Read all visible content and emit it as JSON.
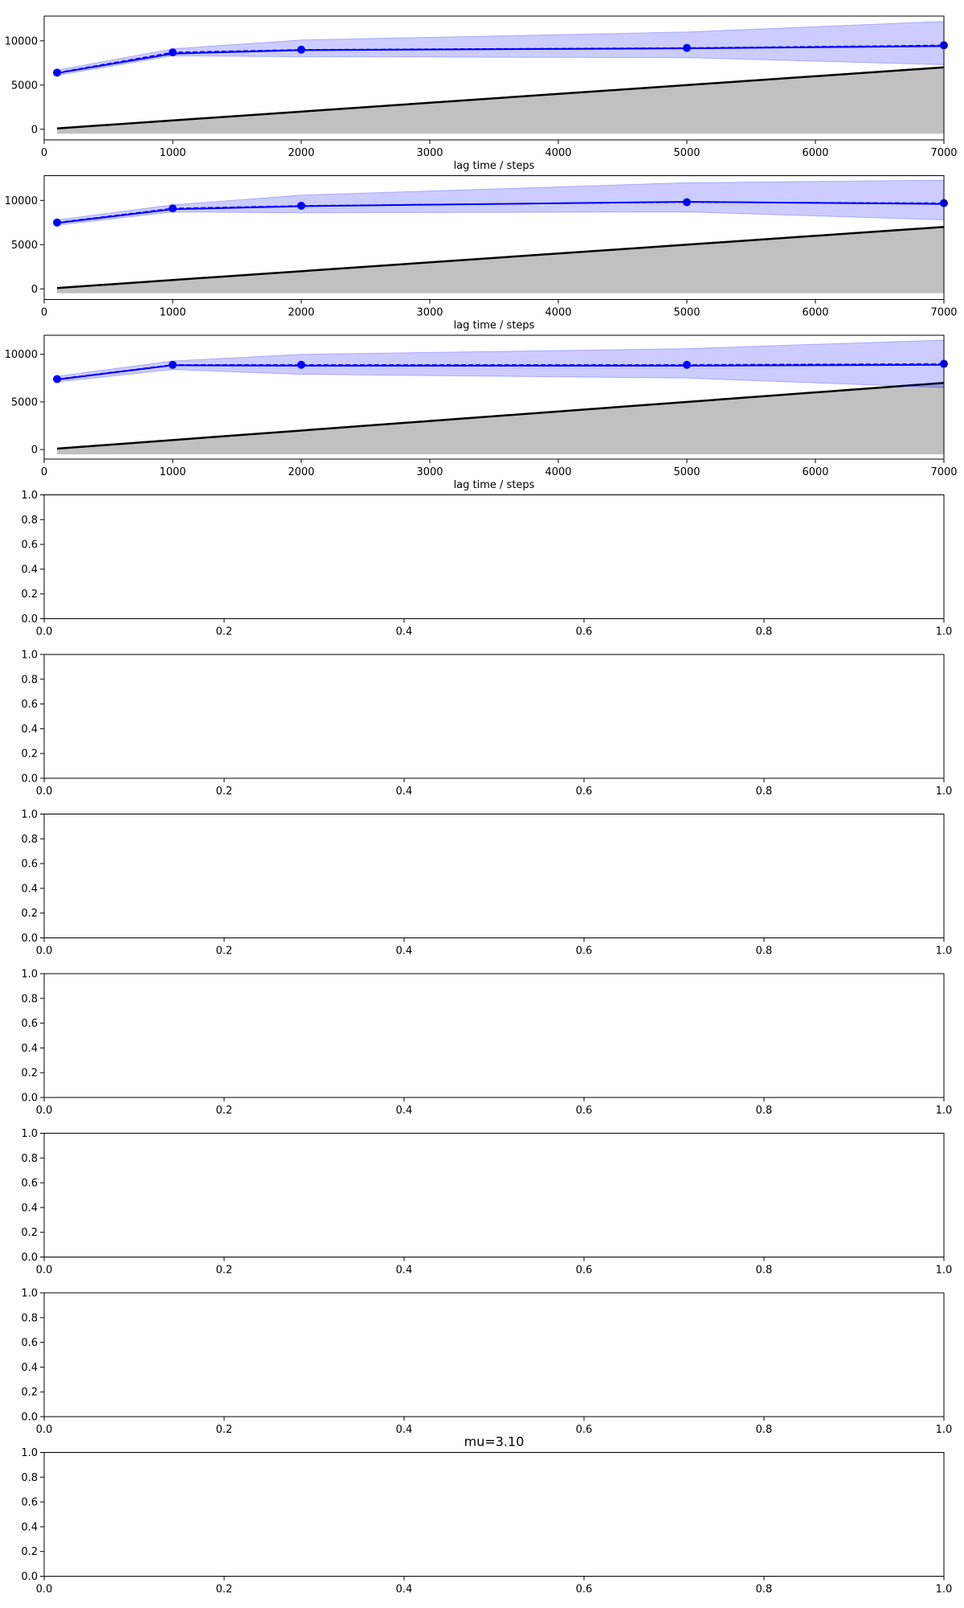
{
  "chart_data": [
    {
      "type": "line",
      "title": "",
      "xlabel": "lag time / steps",
      "ylabel": "",
      "xlim": [
        0,
        7000
      ],
      "ylim": [
        -1200,
        12800
      ],
      "xticks": [
        "0",
        "1000",
        "2000",
        "3000",
        "4000",
        "5000",
        "6000",
        "7000"
      ],
      "yticks": [
        "0",
        "5000",
        "10000"
      ],
      "grid": false,
      "series": [
        {
          "x": [
            100,
            1000,
            2000,
            5000,
            7000
          ],
          "mean": [
            6400,
            8700,
            9000,
            9200,
            9500
          ],
          "sample": [
            6350,
            8550,
            8950,
            9150,
            9400
          ],
          "lower": [
            6100,
            8300,
            8200,
            8100,
            7300
          ],
          "upper": [
            6700,
            9100,
            10100,
            11000,
            12200
          ],
          "color": "#0000ff"
        }
      ],
      "reference": {
        "x": [
          100,
          7000
        ],
        "y": [
          100,
          7000
        ],
        "fill_bottom": -500,
        "color": "#000000",
        "fill": "#c0c0c0"
      }
    },
    {
      "type": "line",
      "title": "",
      "xlabel": "lag time / steps",
      "ylabel": "",
      "xlim": [
        0,
        7000
      ],
      "ylim": [
        -1200,
        12800
      ],
      "xticks": [
        "0",
        "1000",
        "2000",
        "3000",
        "4000",
        "5000",
        "6000",
        "7000"
      ],
      "yticks": [
        "0",
        "5000",
        "10000"
      ],
      "grid": false,
      "series": [
        {
          "x": [
            100,
            1000,
            2000,
            5000,
            7000
          ],
          "mean": [
            7500,
            9100,
            9400,
            9800,
            9700
          ],
          "sample": [
            7450,
            9000,
            9350,
            9850,
            9600
          ],
          "lower": [
            7200,
            8700,
            8600,
            8700,
            7800
          ],
          "upper": [
            7800,
            9500,
            10600,
            12000,
            12300
          ],
          "color": "#0000ff"
        }
      ],
      "reference": {
        "x": [
          100,
          7000
        ],
        "y": [
          100,
          7000
        ],
        "fill_bottom": -500,
        "color": "#000000",
        "fill": "#c0c0c0"
      }
    },
    {
      "type": "line",
      "title": "",
      "xlabel": "lag time / steps",
      "ylabel": "",
      "xlim": [
        0,
        7000
      ],
      "ylim": [
        -1000,
        12000
      ],
      "xticks": [
        "0",
        "1000",
        "2000",
        "3000",
        "4000",
        "5000",
        "6000",
        "7000"
      ],
      "yticks": [
        "0",
        "5000",
        "10000"
      ],
      "grid": false,
      "series": [
        {
          "x": [
            100,
            1000,
            2000,
            5000,
            7000
          ],
          "mean": [
            7400,
            8900,
            8900,
            8900,
            9000
          ],
          "sample": [
            7350,
            8850,
            8800,
            8800,
            8900
          ],
          "lower": [
            7100,
            8400,
            7900,
            7500,
            6500
          ],
          "upper": [
            7700,
            9300,
            10000,
            10600,
            11500
          ],
          "color": "#0000ff"
        }
      ],
      "reference": {
        "x": [
          100,
          7000
        ],
        "y": [
          100,
          7000
        ],
        "fill_bottom": -500,
        "color": "#000000",
        "fill": "#c0c0c0"
      }
    },
    {
      "type": "line",
      "title": "",
      "xlabel": "",
      "xlim": [
        0,
        1
      ],
      "ylim": [
        0,
        1
      ],
      "xticks": [
        "0.0",
        "0.2",
        "0.4",
        "0.6",
        "0.8",
        "1.0"
      ],
      "yticks": [
        "0.0",
        "0.2",
        "0.4",
        "0.6",
        "0.8",
        "1.0"
      ],
      "series": []
    },
    {
      "type": "line",
      "title": "",
      "xlabel": "",
      "xlim": [
        0,
        1
      ],
      "ylim": [
        0,
        1
      ],
      "xticks": [
        "0.0",
        "0.2",
        "0.4",
        "0.6",
        "0.8",
        "1.0"
      ],
      "yticks": [
        "0.0",
        "0.2",
        "0.4",
        "0.6",
        "0.8",
        "1.0"
      ],
      "series": []
    },
    {
      "type": "line",
      "title": "",
      "xlabel": "",
      "xlim": [
        0,
        1
      ],
      "ylim": [
        0,
        1
      ],
      "xticks": [
        "0.0",
        "0.2",
        "0.4",
        "0.6",
        "0.8",
        "1.0"
      ],
      "yticks": [
        "0.0",
        "0.2",
        "0.4",
        "0.6",
        "0.8",
        "1.0"
      ],
      "series": []
    },
    {
      "type": "line",
      "title": "",
      "xlabel": "",
      "xlim": [
        0,
        1
      ],
      "ylim": [
        0,
        1
      ],
      "xticks": [
        "0.0",
        "0.2",
        "0.4",
        "0.6",
        "0.8",
        "1.0"
      ],
      "yticks": [
        "0.0",
        "0.2",
        "0.4",
        "0.6",
        "0.8",
        "1.0"
      ],
      "series": []
    },
    {
      "type": "line",
      "title": "",
      "xlabel": "",
      "xlim": [
        0,
        1
      ],
      "ylim": [
        0,
        1
      ],
      "xticks": [
        "0.0",
        "0.2",
        "0.4",
        "0.6",
        "0.8",
        "1.0"
      ],
      "yticks": [
        "0.0",
        "0.2",
        "0.4",
        "0.6",
        "0.8",
        "1.0"
      ],
      "series": []
    },
    {
      "type": "line",
      "title": "",
      "xlabel": "",
      "xlim": [
        0,
        1
      ],
      "ylim": [
        0,
        1
      ],
      "xticks": [
        "0.0",
        "0.2",
        "0.4",
        "0.6",
        "0.8",
        "1.0"
      ],
      "yticks": [
        "0.0",
        "0.2",
        "0.4",
        "0.6",
        "0.8",
        "1.0"
      ],
      "series": []
    },
    {
      "type": "line",
      "title": "mu=3.10",
      "xlabel": "",
      "xlim": [
        0,
        1
      ],
      "ylim": [
        0,
        1
      ],
      "xticks": [
        "0.0",
        "0.2",
        "0.4",
        "0.6",
        "0.8",
        "1.0"
      ],
      "yticks": [
        "0.0",
        "0.2",
        "0.4",
        "0.6",
        "0.8",
        "1.0"
      ],
      "series": []
    }
  ]
}
